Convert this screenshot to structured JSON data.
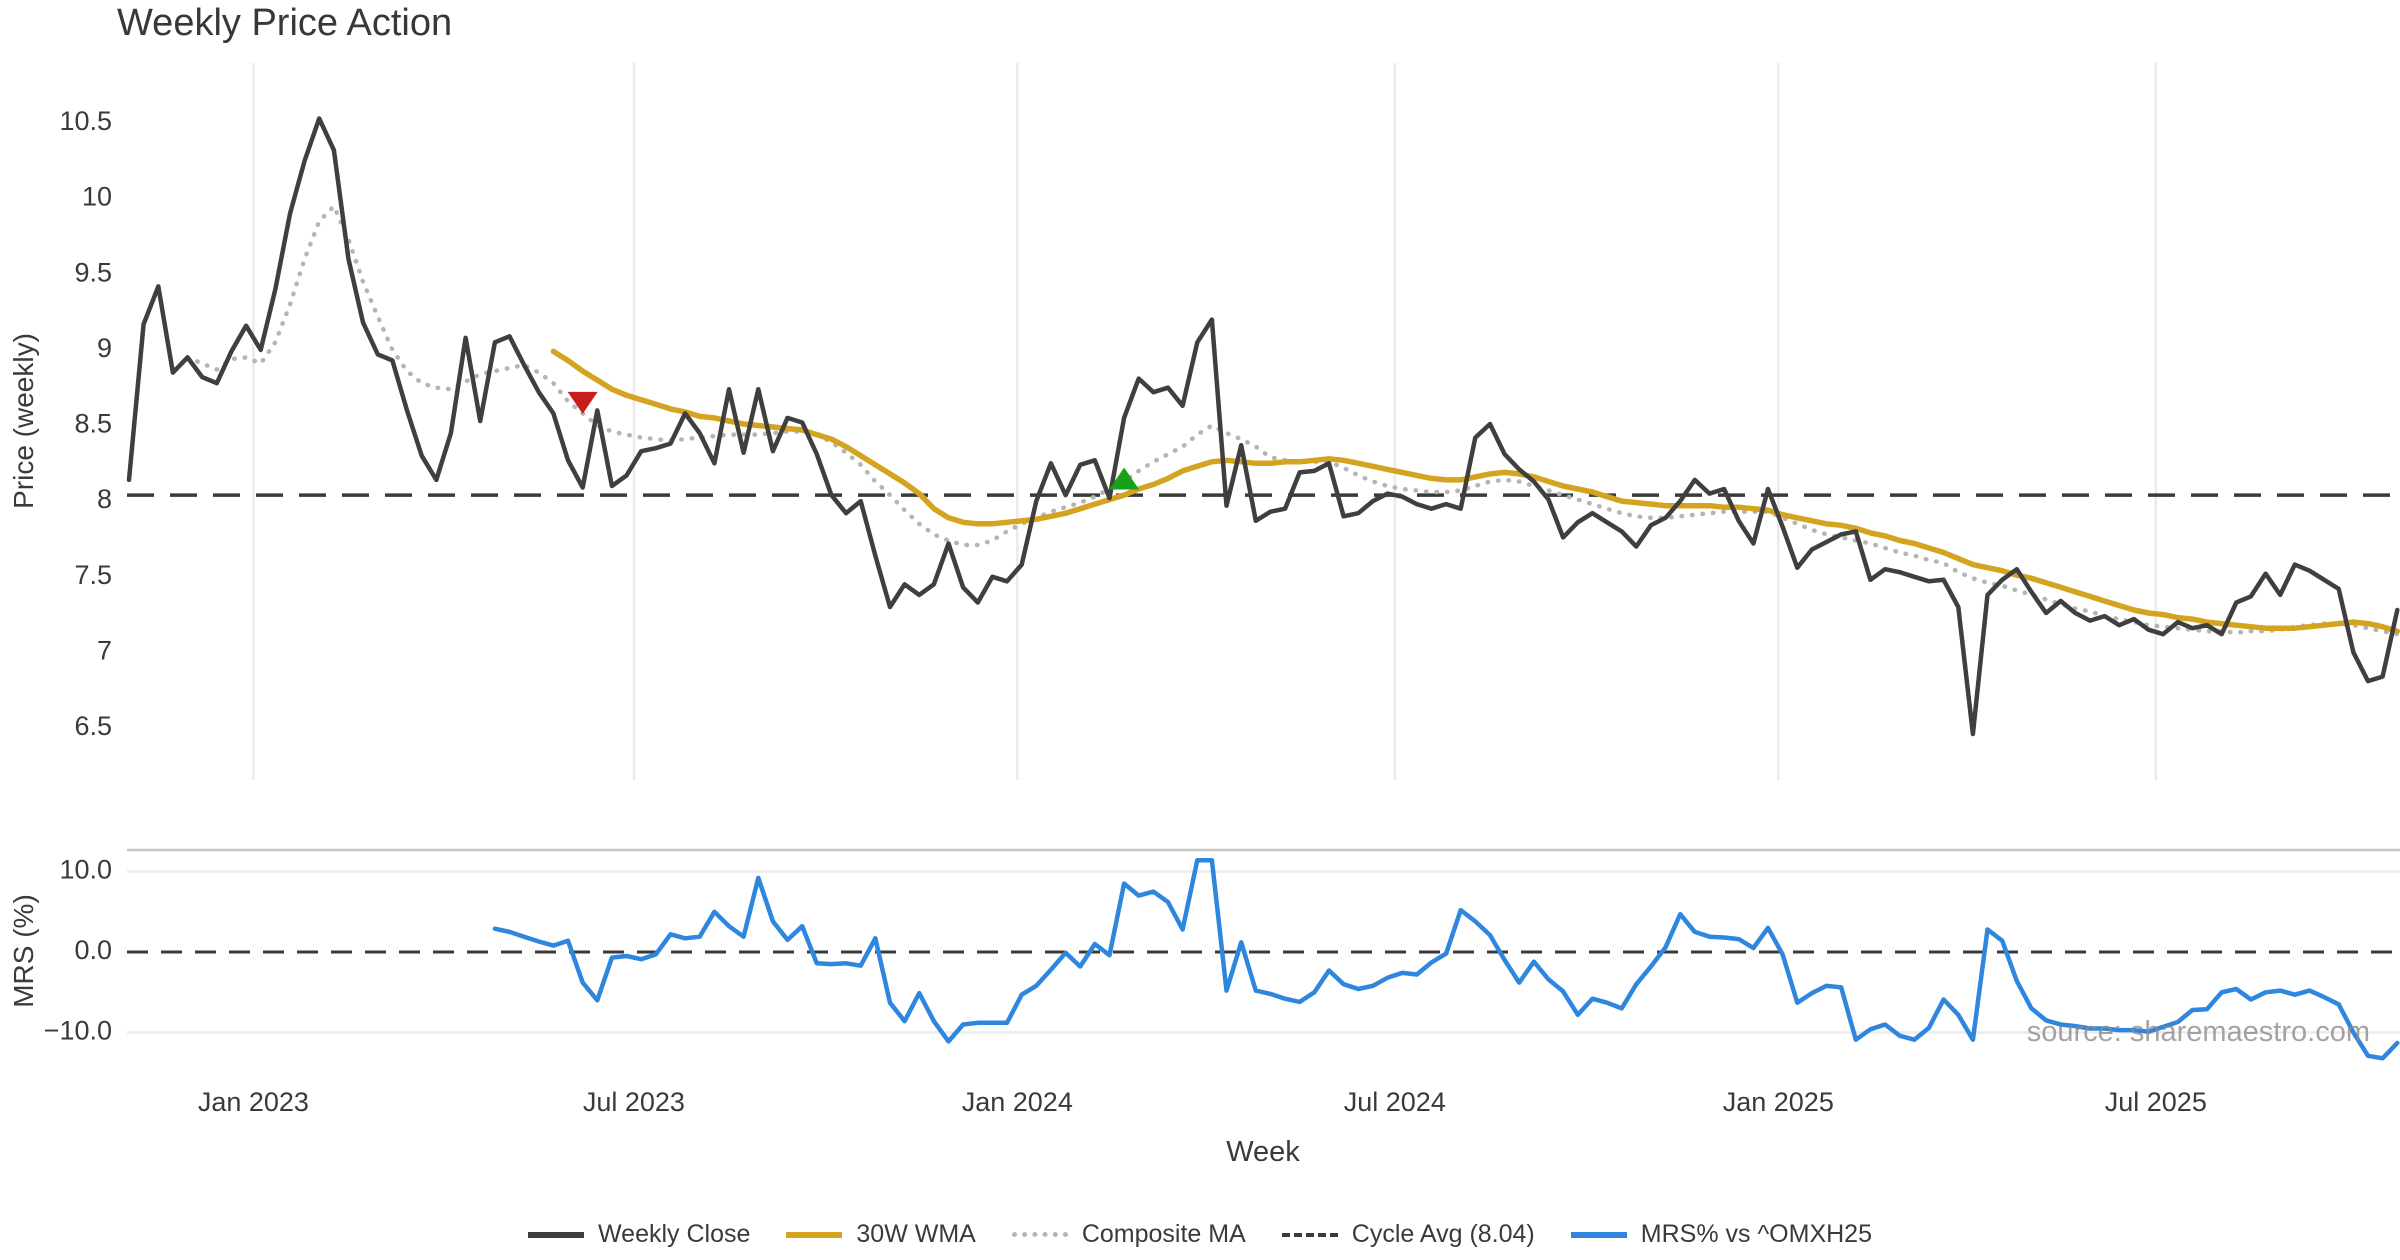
{
  "meta": {
    "title": "Weekly Price Action",
    "watermark": "source: sharemaestro.com"
  },
  "legend": [
    {
      "label": "Weekly Close",
      "color": "#3f3f3f",
      "style": "solid"
    },
    {
      "label": "30W WMA",
      "color": "#d4a320",
      "style": "solid"
    },
    {
      "label": "Composite MA",
      "color": "#b5b5b5",
      "style": "dotted"
    },
    {
      "label": "Cycle Avg (8.04)",
      "color": "#3a3a3a",
      "style": "dashed"
    },
    {
      "label": "MRS% vs ^OMXH25",
      "color": "#2e86de",
      "style": "solid"
    }
  ],
  "colors": {
    "weekly_close": "#3f3f3f",
    "wma": "#d4a320",
    "composite": "#b5b5b5",
    "cycle_avg": "#3a3a3a",
    "mrs": "#2e86de",
    "sell_marker": "#c81d1d",
    "buy_marker": "#18a018",
    "grid": "#ebebeb",
    "panel_border": "#c6c6c6",
    "text": "#3a3a3a"
  },
  "chart_data": {
    "type": "line",
    "title": "Weekly Price Action",
    "x_axis": {
      "label": "Week",
      "start_date": "2022-10-31",
      "step_days": 7,
      "n_points": 156,
      "ticks": [
        {
          "label": "Jan 2023",
          "week": 8.5
        },
        {
          "label": "Jul 2023",
          "week": 34.5
        },
        {
          "label": "Jan 2024",
          "week": 60.7
        },
        {
          "label": "Jul 2024",
          "week": 86.5
        },
        {
          "label": "Jan 2025",
          "week": 112.7
        },
        {
          "label": "Jul 2025",
          "week": 138.5
        }
      ]
    },
    "panels": [
      {
        "id": "price",
        "ylabel": "Price (weekly)",
        "ylim": [
          6.16,
          10.9
        ],
        "grid": "vertical-only",
        "yticks": [
          {
            "label": "10.5",
            "value": 10.5
          },
          {
            "label": "10",
            "value": 10.0
          },
          {
            "label": "9.5",
            "value": 9.5
          },
          {
            "label": "9",
            "value": 9.0
          },
          {
            "label": "8.5",
            "value": 8.5
          },
          {
            "label": "8",
            "value": 8.0
          },
          {
            "label": "7.5",
            "value": 7.5
          },
          {
            "label": "7",
            "value": 7.0
          },
          {
            "label": "6.5",
            "value": 6.5
          }
        ],
        "cycle_avg": 8.04,
        "series": [
          {
            "name": "Weekly Close",
            "style": "solid",
            "values": [
              8.14,
              9.17,
              9.42,
              8.85,
              8.95,
              8.82,
              8.78,
              8.99,
              9.16,
              9.0,
              9.4,
              9.9,
              10.25,
              10.53,
              10.32,
              9.6,
              9.18,
              8.97,
              8.93,
              8.6,
              8.3,
              8.14,
              8.45,
              9.08,
              8.53,
              9.05,
              9.09,
              8.9,
              8.72,
              8.58,
              8.27,
              8.09,
              8.6,
              8.1,
              8.17,
              8.33,
              8.35,
              8.38,
              8.58,
              8.45,
              8.25,
              8.74,
              8.32,
              8.74,
              8.33,
              8.55,
              8.52,
              8.31,
              8.04,
              7.92,
              8.0,
              7.64,
              7.3,
              7.45,
              7.38,
              7.45,
              7.72,
              7.43,
              7.33,
              7.5,
              7.47,
              7.58,
              8.0,
              8.25,
              8.04,
              8.24,
              8.27,
              8.02,
              8.55,
              8.81,
              8.72,
              8.75,
              8.63,
              9.05,
              9.2,
              7.97,
              8.37,
              7.87,
              7.93,
              7.95,
              8.19,
              8.2,
              8.25,
              7.9,
              7.92,
              8.0,
              8.05,
              8.03,
              7.98,
              7.95,
              7.98,
              7.95,
              8.42,
              8.51,
              8.31,
              8.21,
              8.13,
              8.01,
              7.76,
              7.86,
              7.92,
              7.86,
              7.8,
              7.7,
              7.84,
              7.89,
              8.0,
              8.14,
              8.05,
              8.08,
              7.87,
              7.72,
              8.08,
              7.83,
              7.56,
              7.68,
              7.73,
              7.78,
              7.8,
              7.48,
              7.55,
              7.53,
              7.5,
              7.47,
              7.48,
              7.3,
              6.46,
              7.38,
              7.48,
              7.55,
              7.4,
              7.26,
              7.34,
              7.26,
              7.21,
              7.24,
              7.18,
              7.22,
              7.15,
              7.12,
              7.2,
              7.16,
              7.18,
              7.12,
              7.33,
              7.37,
              7.52,
              7.38,
              7.58,
              7.54,
              7.48,
              7.42,
              7.0,
              6.81,
              6.84,
              7.28
            ]
          },
          {
            "name": "30W WMA",
            "style": "solid",
            "values": [
              null,
              null,
              null,
              null,
              null,
              null,
              null,
              null,
              null,
              null,
              null,
              null,
              null,
              null,
              null,
              null,
              null,
              null,
              null,
              null,
              null,
              null,
              null,
              null,
              null,
              null,
              null,
              null,
              null,
              8.99,
              8.93,
              8.86,
              8.8,
              8.74,
              8.7,
              8.67,
              8.64,
              8.61,
              8.59,
              8.56,
              8.55,
              8.53,
              8.51,
              8.5,
              8.49,
              8.48,
              8.47,
              8.44,
              8.41,
              8.36,
              8.3,
              8.24,
              8.18,
              8.12,
              8.05,
              7.95,
              7.89,
              7.86,
              7.85,
              7.85,
              7.86,
              7.87,
              7.88,
              7.9,
              7.92,
              7.95,
              7.98,
              8.01,
              8.04,
              8.08,
              8.11,
              8.15,
              8.2,
              8.23,
              8.26,
              8.27,
              8.26,
              8.25,
              8.25,
              8.26,
              8.26,
              8.27,
              8.28,
              8.27,
              8.25,
              8.23,
              8.21,
              8.19,
              8.17,
              8.15,
              8.14,
              8.14,
              8.16,
              8.18,
              8.19,
              8.18,
              8.16,
              8.13,
              8.1,
              8.08,
              8.06,
              8.03,
              8.0,
              7.99,
              7.98,
              7.97,
              7.97,
              7.97,
              7.97,
              7.96,
              7.96,
              7.95,
              7.94,
              7.91,
              7.89,
              7.87,
              7.85,
              7.84,
              7.82,
              7.79,
              7.77,
              7.74,
              7.72,
              7.69,
              7.66,
              7.62,
              7.58,
              7.56,
              7.54,
              7.51,
              7.49,
              7.46,
              7.43,
              7.4,
              7.37,
              7.34,
              7.31,
              7.28,
              7.26,
              7.25,
              7.23,
              7.22,
              7.2,
              7.19,
              7.18,
              7.17,
              7.16,
              7.16,
              7.16,
              7.17,
              7.18,
              7.19,
              7.2,
              7.19,
              7.17,
              7.14
            ]
          },
          {
            "name": "Composite MA",
            "style": "dotted",
            "values": [
              null,
              null,
              null,
              null,
              8.95,
              8.91,
              8.87,
              8.94,
              8.95,
              8.91,
              9.05,
              9.3,
              9.6,
              9.85,
              9.95,
              9.73,
              9.45,
              9.22,
              9.0,
              8.86,
              8.78,
              8.75,
              8.74,
              8.79,
              8.84,
              8.86,
              8.88,
              8.9,
              8.85,
              8.78,
              8.66,
              8.58,
              8.5,
              8.46,
              8.44,
              8.42,
              8.41,
              8.4,
              8.41,
              8.42,
              8.43,
              8.44,
              8.44,
              8.44,
              8.45,
              8.46,
              8.46,
              8.44,
              8.39,
              8.32,
              8.24,
              8.13,
              8.04,
              7.94,
              7.85,
              7.78,
              7.74,
              7.71,
              7.71,
              7.74,
              7.8,
              7.85,
              7.89,
              7.93,
              7.96,
              7.99,
              8.03,
              8.08,
              8.13,
              8.2,
              8.26,
              8.31,
              8.36,
              8.44,
              8.5,
              8.45,
              8.41,
              8.36,
              8.29,
              8.27,
              8.26,
              8.26,
              8.26,
              8.22,
              8.17,
              8.13,
              8.1,
              8.08,
              8.07,
              8.06,
              8.06,
              8.07,
              8.1,
              8.13,
              8.14,
              8.13,
              8.1,
              8.07,
              8.04,
              8.01,
              7.98,
              7.95,
              7.92,
              7.9,
              7.89,
              7.89,
              7.9,
              7.91,
              7.92,
              7.93,
              7.93,
              7.93,
              7.93,
              7.89,
              7.85,
              7.81,
              7.78,
              7.76,
              7.74,
              7.72,
              7.69,
              7.66,
              7.64,
              7.61,
              7.59,
              7.53,
              7.49,
              7.46,
              7.44,
              7.41,
              7.38,
              7.35,
              7.32,
              7.29,
              7.27,
              7.24,
              7.22,
              7.2,
              7.18,
              7.17,
              7.16,
              7.15,
              7.14,
              7.14,
              7.13,
              7.14,
              7.14,
              7.15,
              7.17,
              7.18,
              7.19,
              7.19,
              7.18,
              7.16,
              7.14,
              7.12
            ]
          }
        ],
        "markers": [
          {
            "name": "sell-signal",
            "shape": "triangle-down",
            "week": 31,
            "value": 8.65
          },
          {
            "name": "buy-signal",
            "shape": "triangle-up",
            "week": 68,
            "value": 8.15
          }
        ]
      },
      {
        "id": "mrs",
        "ylabel": "MRS (%)",
        "ylim": [
          -13.7,
          12.7
        ],
        "zero_line": 0.0,
        "yticks": [
          {
            "label": "10.0",
            "value": 10.0
          },
          {
            "label": "0.0",
            "value": 0.0
          },
          {
            "label": "−10.0",
            "value": -10.0
          }
        ],
        "series": [
          {
            "name": "MRS% vs ^OMXH25",
            "style": "solid",
            "values": [
              null,
              null,
              null,
              null,
              null,
              null,
              null,
              null,
              null,
              null,
              null,
              null,
              null,
              null,
              null,
              null,
              null,
              null,
              null,
              null,
              null,
              null,
              null,
              null,
              null,
              2.9,
              2.5,
              1.9,
              1.3,
              0.8,
              1.4,
              -3.8,
              -6.0,
              -0.7,
              -0.5,
              -0.9,
              -0.3,
              2.2,
              1.7,
              1.9,
              5.0,
              3.2,
              1.9,
              9.2,
              3.8,
              1.5,
              3.2,
              -1.4,
              -1.5,
              -1.4,
              -1.7,
              1.7,
              -6.3,
              -8.6,
              -5.1,
              -8.6,
              -11.1,
              -9.0,
              -8.8,
              -8.8,
              -8.8,
              -5.3,
              -4.2,
              -2.2,
              -0.1,
              -1.8,
              1.0,
              -0.4,
              8.5,
              7.0,
              7.5,
              6.2,
              2.8,
              11.4,
              11.4,
              -4.8,
              1.2,
              -4.8,
              -5.2,
              -5.8,
              -6.2,
              -5.0,
              -2.3,
              -4.0,
              -4.6,
              -4.2,
              -3.2,
              -2.6,
              -2.8,
              -1.3,
              -0.2,
              5.2,
              3.8,
              2.1,
              -1.0,
              -3.8,
              -1.2,
              -3.4,
              -4.9,
              -7.8,
              -5.8,
              -6.3,
              -7.0,
              -4.0,
              -1.8,
              0.6,
              4.7,
              2.5,
              1.9,
              1.8,
              1.6,
              0.5,
              3.0,
              -0.3,
              -6.3,
              -5.1,
              -4.2,
              -4.4,
              -10.9,
              -9.6,
              -9.0,
              -10.4,
              -10.9,
              -9.4,
              -5.9,
              -7.8,
              -10.9,
              2.8,
              1.4,
              -3.6,
              -7.0,
              -8.5,
              -9.0,
              -9.2,
              -9.5,
              -9.5,
              -9.7,
              -9.7,
              -9.9,
              -9.3,
              -8.7,
              -7.2,
              -7.1,
              -5.0,
              -4.6,
              -5.9,
              -5.0,
              -4.8,
              -5.3,
              -4.8,
              -5.6,
              -6.5,
              -10.0,
              -12.9,
              -13.2,
              -11.3
            ]
          }
        ]
      }
    ]
  }
}
